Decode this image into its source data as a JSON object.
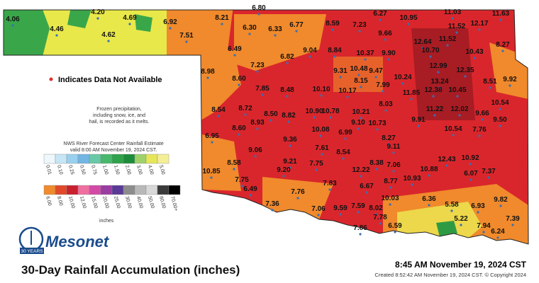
{
  "legend_note": "Indicates Data Not Available",
  "frozen_note": [
    "Frozen precipitation,",
    "including snow, ice, and",
    "hail, is recorded as it melts."
  ],
  "scale_title": [
    "NWS River Forecast Center Rainfall Estimate",
    "valid 8:00 AM November 19, 2024 CST."
  ],
  "scale_low": [
    "0.01",
    "0.10",
    "0.25",
    "0.50",
    "0.75",
    "1.00",
    "1.50",
    "2.00",
    "3.00",
    "4.00",
    "5.00"
  ],
  "scale_high": [
    "6.00",
    "8.00",
    "10.00",
    "12.00",
    "15.00",
    "20.00",
    "25.00",
    "30.00",
    "40.00",
    "50.00",
    "60.00",
    "70.00+"
  ],
  "scale_unit": "inches",
  "logo": {
    "name": "Mesonet",
    "badge": "30 YEARS"
  },
  "title": "30-Day Rainfall Accumulation (inches)",
  "timestamp": "8:45 AM November 19, 2024 CST",
  "created": "Created 8:52:42 AM November 19, 2024 CST. © Copyright 2024",
  "stations": [
    "4.06",
    "4.46",
    "4.20",
    "4.69",
    "4.62",
    "6.92",
    "7.51",
    "6.80",
    "8.21",
    "6.30",
    "6.33",
    "6.77",
    "8.59",
    "7.23",
    "6.27",
    "9.66",
    "10.95",
    "11.03",
    "11.63",
    "11.52",
    "12.17",
    "8.27",
    "12.64",
    "11.52",
    "10.70",
    "10.43",
    "6.49",
    "6.82",
    "9.04",
    "8.84",
    "10.37",
    "9.90",
    "8.98",
    "7.23",
    "9.31",
    "10.48",
    "9.47",
    "12.99",
    "12.35",
    "8.60",
    "8.15",
    "10.24",
    "13.24",
    "8.51",
    "9.92",
    "7.85",
    "8.48",
    "10.10",
    "10.17",
    "7.99",
    "11.85",
    "12.38",
    "10.45",
    "8.03",
    "10.54",
    "8.54",
    "8.72",
    "8.50",
    "8.82",
    "10.90",
    "10.78",
    "10.21",
    "11.22",
    "12.02",
    "9.66",
    "9.50",
    "8.60",
    "8.93",
    "9.10",
    "10.73",
    "9.91",
    "6.95",
    "10.08",
    "6.99",
    "8.27",
    "10.54",
    "7.76",
    "9.36",
    "9.06",
    "7.61",
    "8.54",
    "9.11",
    "8.58",
    "9.21",
    "7.75",
    "9.20",
    "12.22",
    "8.38",
    "7.06",
    "10.88",
    "12.43",
    "10.92",
    "6.07",
    "7.37",
    "10.85",
    "7.75",
    "7.76",
    "7.83",
    "8.77",
    "10.93",
    "6.49",
    "6.67",
    "7.36",
    "10.03",
    "6.36",
    "5.58",
    "6.93",
    "9.82",
    "7.06",
    "9.59",
    "7.59",
    "8.02",
    "7.78",
    "5.22",
    "7.39",
    "7.86",
    "6.59",
    "7.94",
    "6.24"
  ]
}
